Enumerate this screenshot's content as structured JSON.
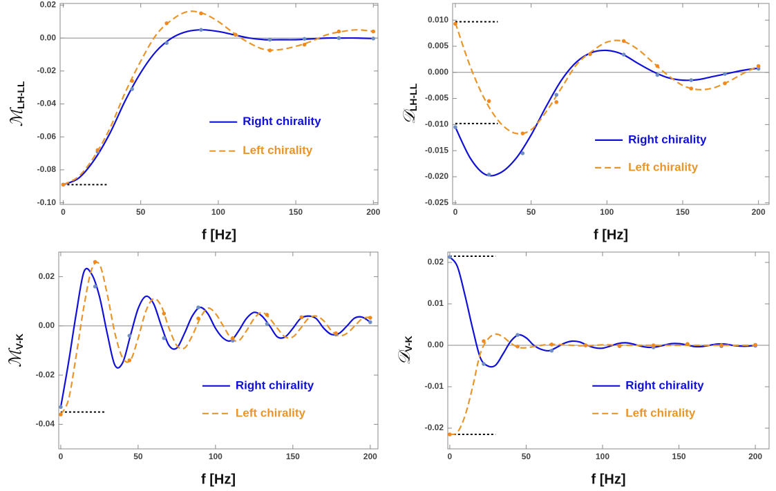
{
  "chart_data": [
    {
      "type": "line",
      "ylabel": {
        "symbol": "ℳ",
        "subscript": "LH-LL"
      },
      "xlabel": "f [Hz]",
      "x": [
        0,
        10,
        20,
        30,
        40,
        50,
        60,
        70,
        80,
        90,
        100,
        110,
        120,
        130,
        140,
        150,
        160,
        170,
        180,
        190,
        200
      ],
      "xlim": [
        -2,
        203
      ],
      "xticks": [
        0,
        50,
        100,
        150,
        200
      ],
      "ylim": [
        -0.101,
        0.021
      ],
      "yticks": [
        0.02,
        {
          "value": 0,
          "label": "0.00"
        },
        -0.02,
        -0.04,
        -0.06,
        -0.08,
        {
          "value": -0.1,
          "label": "-0.10"
        }
      ],
      "legend": "center right",
      "zero_line": true,
      "point_x": [
        0,
        22.2,
        44.4,
        66.7,
        88.9,
        111.1,
        133.3,
        155.6,
        177.8,
        200
      ],
      "series": [
        {
          "name": "Right chirality",
          "color": "#1010d8",
          "dash": false,
          "point_color": "#6f8fc4",
          "values": [
            -0.089,
            -0.085,
            -0.074,
            -0.058,
            -0.038,
            -0.021,
            -0.008,
            0,
            0.004,
            0.005,
            0.004,
            0.002,
            0,
            -0.001,
            -0.001,
            -0.001,
            -0.0005,
            0,
            0,
            0,
            -0.0003
          ],
          "points": [
            -0.089,
            -0.069,
            -0.031,
            -0.003,
            0.005,
            0.002,
            -0.001,
            -0.0005,
            0,
            -0.0003
          ]
        },
        {
          "name": "Left chirality",
          "color": "#e8952a",
          "dash": true,
          "point_color": "#f08a1e",
          "values": [
            -0.089,
            -0.084,
            -0.072,
            -0.055,
            -0.033,
            -0.014,
            0.002,
            0.011,
            0.016,
            0.015,
            0.01,
            0.003,
            -0.003,
            -0.007,
            -0.007,
            -0.005,
            -0.002,
            0.002,
            0.004,
            0.005,
            0.004
          ],
          "points": [
            -0.089,
            -0.068,
            -0.026,
            0.009,
            0.015,
            0.002,
            -0.0075,
            -0.004,
            0.004,
            0.004
          ]
        }
      ],
      "reference_lines": [
        {
          "y": -0.089,
          "x": [
            0,
            28
          ]
        }
      ]
    },
    {
      "type": "line",
      "ylabel": {
        "symbol": "𝒟",
        "subscript": "LH-LL"
      },
      "xlabel": "f [Hz]",
      "x": [
        0,
        10,
        20,
        30,
        40,
        50,
        60,
        70,
        80,
        90,
        100,
        110,
        120,
        130,
        140,
        150,
        160,
        170,
        180,
        190,
        200
      ],
      "xlim": [
        -1.8,
        207
      ],
      "xticks": [
        0,
        50,
        100,
        150,
        200
      ],
      "ylim": [
        -0.0253,
        0.0132
      ],
      "yticks": [
        {
          "value": 0.01,
          "label": "0.010"
        },
        0.005,
        {
          "value": 0,
          "label": "0.000"
        },
        -0.005,
        {
          "value": -0.01,
          "label": "-0.010"
        },
        -0.015,
        {
          "value": -0.02,
          "label": "-0.020"
        },
        -0.025
      ],
      "legend": "lower right",
      "zero_line": true,
      "point_x": [
        0,
        22.2,
        44.4,
        66.7,
        88.9,
        111.1,
        133.3,
        155.6,
        177.8,
        200
      ],
      "series": [
        {
          "name": "Right chirality",
          "color": "#1010d8",
          "dash": false,
          "point_color": "#6f8fc4",
          "values": [
            -0.0105,
            -0.0165,
            -0.0196,
            -0.0192,
            -0.0165,
            -0.012,
            -0.0065,
            -0.0015,
            0.002,
            0.0038,
            0.0042,
            0.0035,
            0.0018,
            0.0002,
            -0.001,
            -0.0015,
            -0.0014,
            -0.0008,
            -0.0002,
            0.0004,
            0.0008
          ],
          "points": [
            -0.0105,
            -0.0196,
            -0.0155,
            -0.0043,
            0.0035,
            0.0034,
            -0.0005,
            -0.0015,
            -0.0003,
            0.0007
          ]
        },
        {
          "name": "Left chirality",
          "color": "#e8952a",
          "dash": true,
          "point_color": "#f08a1e",
          "values": [
            0.0095,
            0.001,
            -0.0055,
            -0.0098,
            -0.0117,
            -0.011,
            -0.0075,
            -0.003,
            0.0015,
            0.004,
            0.0058,
            0.006,
            0.0045,
            0.002,
            -0.0005,
            -0.0025,
            -0.0033,
            -0.003,
            -0.0018,
            -0.0002,
            0.0012
          ],
          "points": [
            0.0093,
            -0.0055,
            -0.0117,
            -0.0057,
            0.0035,
            0.006,
            0.0012,
            -0.0031,
            -0.0021,
            0.0012
          ]
        }
      ],
      "reference_lines": [
        {
          "y": 0.0097,
          "x": [
            0,
            28
          ]
        },
        {
          "y": -0.0098,
          "x": [
            0,
            28
          ]
        }
      ]
    },
    {
      "type": "line",
      "ylabel": {
        "symbol": "ℳ",
        "subscript": "V-K"
      },
      "xlabel": "f [Hz]",
      "x": [
        0,
        5,
        10,
        15,
        20,
        25,
        30,
        35,
        40,
        45,
        50,
        55,
        60,
        65,
        70,
        75,
        80,
        85,
        90,
        95,
        100,
        105,
        110,
        115,
        120,
        125,
        130,
        135,
        140,
        145,
        150,
        155,
        160,
        165,
        170,
        175,
        180,
        185,
        190,
        195,
        200
      ],
      "xlim": [
        -1.3,
        205
      ],
      "xticks": [
        0,
        50,
        100,
        150,
        200
      ],
      "ylim": [
        -0.05,
        0.03
      ],
      "yticks": [
        0.02,
        {
          "value": 0,
          "label": "0.00"
        },
        -0.02,
        -0.04
      ],
      "legend": "lower right",
      "zero_line": true,
      "point_x": [
        0,
        22.2,
        44.4,
        66.7,
        88.9,
        111.1,
        133.3,
        155.6,
        177.8,
        200
      ],
      "series": [
        {
          "name": "Right chirality",
          "color": "#1010d8",
          "dash": false,
          "point_color": "#6f8fc4",
          "values": [
            -0.033,
            -0.015,
            0.005,
            0.022,
            0.021,
            0.012,
            -0.003,
            -0.016,
            -0.015,
            -0.004,
            0.007,
            0.012,
            0.009,
            0,
            -0.008,
            -0.009,
            -0.003,
            0.004,
            0.0075,
            0.005,
            -0.001,
            -0.005,
            -0.006,
            -0.002,
            0.003,
            0.0055,
            0.004,
            0,
            -0.0045,
            -0.0045,
            -0.001,
            0.003,
            0.004,
            0.003,
            -0.001,
            -0.0035,
            -0.003,
            0,
            0.0032,
            0.0035,
            0.0015
          ],
          "points": [
            -0.033,
            0.016,
            -0.004,
            -0.005,
            0.0075,
            -0.006,
            0.0008,
            0.0035,
            -0.0035,
            0.0015
          ]
        },
        {
          "name": "Left chirality",
          "color": "#e8952a",
          "dash": true,
          "point_color": "#f08a1e",
          "values": [
            -0.036,
            -0.03,
            -0.012,
            0.008,
            0.023,
            0.025,
            0.013,
            -0.003,
            -0.013,
            -0.014,
            -0.005,
            0.006,
            0.011,
            0.008,
            -0.001,
            -0.008,
            -0.009,
            -0.004,
            0.003,
            0.0072,
            0.005,
            0,
            -0.005,
            -0.006,
            -0.002,
            0.003,
            0.0055,
            0.003,
            -0.001,
            -0.0045,
            -0.0045,
            -0.001,
            0.003,
            0.004,
            0.002,
            -0.002,
            -0.004,
            -0.003,
            0,
            0.003,
            0.0035
          ],
          "points": [
            -0.036,
            0.026,
            -0.014,
            0.005,
            0.003,
            -0.005,
            0.0045,
            0.0035,
            -0.003,
            0.0033
          ]
        }
      ],
      "reference_lines": [
        {
          "y": -0.035,
          "x": [
            0,
            29
          ]
        }
      ]
    },
    {
      "type": "line",
      "ylabel": {
        "symbol": "𝒟",
        "subscript": "V-K"
      },
      "xlabel": "f [Hz]",
      "x": [
        0,
        5,
        10,
        15,
        20,
        25,
        30,
        35,
        40,
        45,
        50,
        55,
        60,
        65,
        70,
        75,
        80,
        85,
        90,
        95,
        100,
        105,
        110,
        115,
        120,
        125,
        130,
        135,
        140,
        145,
        150,
        155,
        160,
        165,
        170,
        175,
        180,
        185,
        190,
        195,
        200
      ],
      "xlim": [
        -1.3,
        209
      ],
      "xticks": [
        0,
        50,
        100,
        150,
        200
      ],
      "ylim": [
        -0.025,
        0.0225
      ],
      "yticks": [
        0.02,
        0.01,
        {
          "value": 0,
          "label": "0.00"
        },
        -0.01,
        -0.02
      ],
      "legend": "lower right",
      "zero_line": true,
      "point_x": [
        0,
        22.2,
        44.4,
        66.7,
        88.9,
        111.1,
        133.3,
        155.6,
        177.8,
        200
      ],
      "series": [
        {
          "name": "Right chirality",
          "color": "#1010d8",
          "dash": false,
          "point_color": "#6f8fc4",
          "values": [
            0.0213,
            0.019,
            0.012,
            0.004,
            -0.003,
            -0.005,
            -0.0048,
            -0.002,
            0.001,
            0.0025,
            0.0018,
            0,
            -0.001,
            -0.0013,
            -0.0005,
            0.0005,
            0.001,
            0.0008,
            0,
            -0.0006,
            -0.0007,
            -0.0002,
            0.0004,
            0.0006,
            0.0003,
            -0.0002,
            -0.0005,
            -0.0004,
            0,
            0.0004,
            0.0004,
            0.0001,
            -0.0003,
            -0.0003,
            0,
            0.0003,
            0.0003,
            0,
            -0.0002,
            -0.0002,
            0
          ],
          "points": [
            0.0213,
            -0.0045,
            0.0025,
            -0.0013,
            0,
            -0.0002,
            -0.0005,
            0.0003,
            -0.0002,
            -0.0001
          ]
        },
        {
          "name": "Left chirality",
          "color": "#e8952a",
          "dash": true,
          "point_color": "#f08a1e",
          "values": [
            -0.0215,
            -0.021,
            -0.017,
            -0.01,
            -0.002,
            0.0015,
            0.0027,
            0.002,
            0.0005,
            -0.0005,
            -0.0006,
            -0.0003,
            0,
            0.0002,
            0.0002,
            0.0001,
            0,
            -0.0001,
            -0.0001,
            0,
            0.0001,
            0.0001,
            0,
            0,
            0,
            0,
            0,
            0,
            0,
            0,
            0,
            0,
            0,
            0,
            0,
            0,
            0,
            0,
            0,
            0,
            0
          ],
          "points": [
            -0.0215,
            0.001,
            -0.0003,
            0.0002,
            0,
            -0.0001,
            0,
            0.0003,
            0,
            0.0001
          ]
        }
      ],
      "reference_lines": [
        {
          "y": 0.0215,
          "x": [
            0,
            30
          ]
        },
        {
          "y": -0.0215,
          "x": [
            0,
            30
          ]
        }
      ]
    }
  ]
}
